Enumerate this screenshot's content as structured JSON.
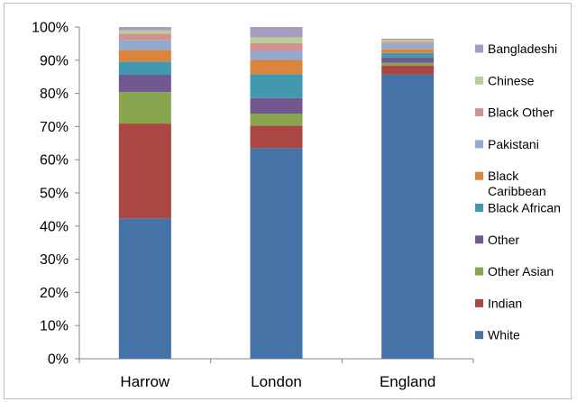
{
  "chart_data": {
    "type": "bar",
    "stacked": true,
    "categories": [
      "Harrow",
      "London",
      "England"
    ],
    "series": [
      {
        "name": "White",
        "color": "#4572a7",
        "values": [
          42.3,
          63.5,
          85.7
        ]
      },
      {
        "name": "Indian",
        "color": "#aa4643",
        "values": [
          28.6,
          6.8,
          2.7
        ]
      },
      {
        "name": "Other Asian",
        "color": "#89a54e",
        "values": [
          9.5,
          3.6,
          0.8
        ]
      },
      {
        "name": "Other",
        "color": "#71588f",
        "values": [
          5.2,
          4.7,
          1.6
        ]
      },
      {
        "name": "Black African",
        "color": "#4198af",
        "values": [
          4.0,
          7.2,
          1.4
        ]
      },
      {
        "name": "Black Caribbean",
        "color": "#db843d",
        "values": [
          3.5,
          4.3,
          1.2
        ]
      },
      {
        "name": "Pakistani",
        "color": "#93a9cf",
        "values": [
          2.9,
          2.7,
          1.6
        ]
      },
      {
        "name": "Black Other",
        "color": "#d19392",
        "values": [
          2.0,
          2.4,
          0.5
        ]
      },
      {
        "name": "Chinese",
        "color": "#b9cd96",
        "values": [
          1.0,
          1.7,
          0.6
        ]
      },
      {
        "name": "Bangladeshi",
        "color": "#a99bbd",
        "values": [
          1.0,
          3.1,
          0.4
        ]
      }
    ],
    "y_ticks": [
      "0%",
      "10%",
      "20%",
      "30%",
      "40%",
      "50%",
      "60%",
      "70%",
      "80%",
      "90%",
      "100%"
    ],
    "ylim": [
      0,
      100
    ],
    "grid": false,
    "legend": {
      "placement": "right",
      "order": [
        "Bangladeshi",
        "Chinese",
        "Black Other",
        "Pakistani",
        "Black Caribbean",
        "Black African",
        "Other",
        "Other Asian",
        "Indian",
        "White"
      ],
      "labels": {
        "Bangladeshi": [
          "Bangladeshi"
        ],
        "Chinese": [
          "Chinese"
        ],
        "Black Other": [
          "Black Other"
        ],
        "Pakistani": [
          "Pakistani"
        ],
        "Black Caribbean": [
          "Black",
          "Caribbean"
        ],
        "Black African": [
          "Black African"
        ],
        "Other": [
          "Other"
        ],
        "Other Asian": [
          "Other Asian"
        ],
        "Indian": [
          "Indian"
        ],
        "White": [
          "White"
        ]
      }
    }
  }
}
